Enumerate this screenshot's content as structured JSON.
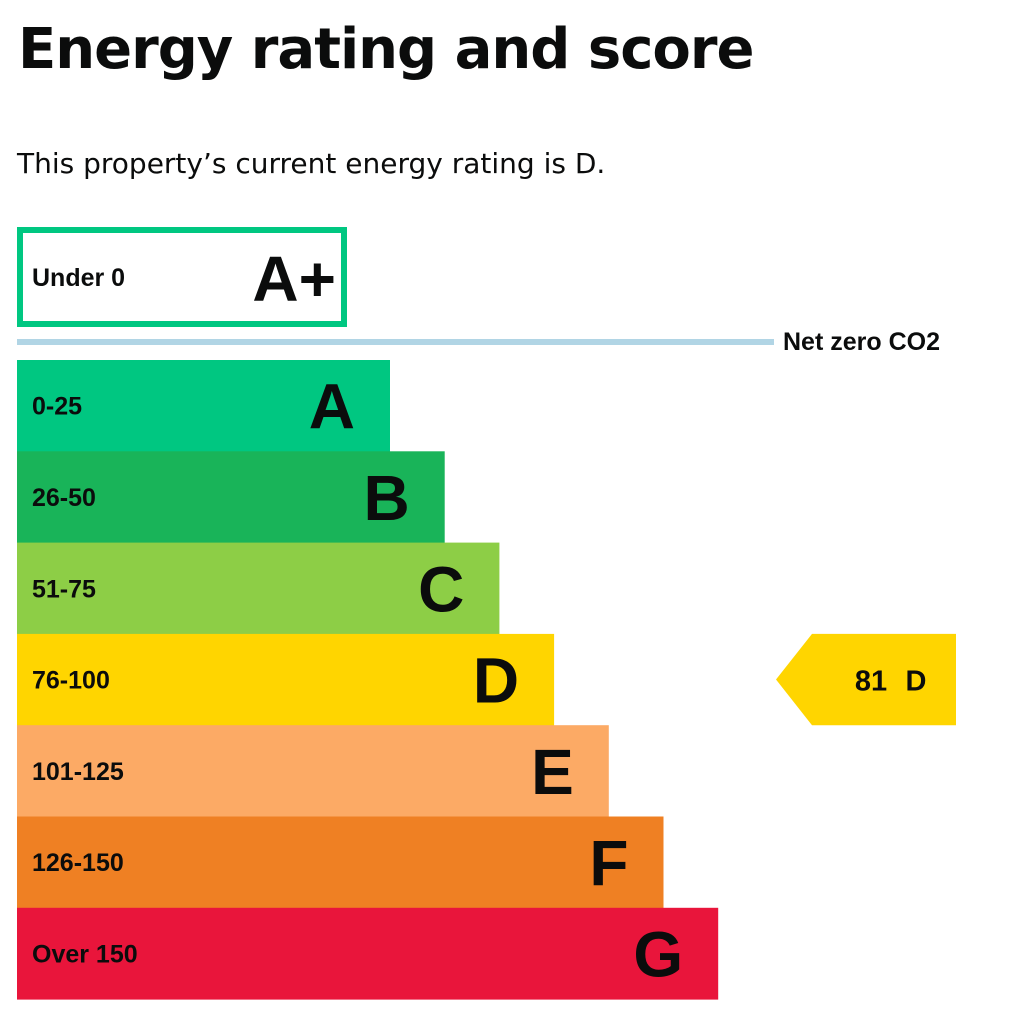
{
  "page": {
    "title": "Energy rating and score",
    "intro": "This property’s current energy rating is D."
  },
  "chart_data": {
    "type": "bar",
    "categories": [
      "A+",
      "A",
      "B",
      "C",
      "D",
      "E",
      "F",
      "G"
    ],
    "series": [
      {
        "ranges": [
          "Under 0",
          "0-25",
          "26-50",
          "51-75",
          "76-100",
          "101-125",
          "126-150",
          "Over 150"
        ]
      }
    ],
    "bands": [
      {
        "letter": "A+",
        "range": "Under 0",
        "min": -25,
        "max": 0,
        "color": "#00c781",
        "outlined": true
      },
      {
        "letter": "A",
        "range": "0-25",
        "min": 0,
        "max": 25,
        "color": "#00c781"
      },
      {
        "letter": "B",
        "range": "26-50",
        "min": 26,
        "max": 50,
        "color": "#19b459"
      },
      {
        "letter": "C",
        "range": "51-75",
        "min": 51,
        "max": 75,
        "color": "#8dce46"
      },
      {
        "letter": "D",
        "range": "76-100",
        "min": 76,
        "max": 100,
        "color": "#ffd500"
      },
      {
        "letter": "E",
        "range": "101-125",
        "min": 101,
        "max": 125,
        "color": "#fcaa65"
      },
      {
        "letter": "F",
        "range": "126-150",
        "min": 126,
        "max": 150,
        "color": "#ef8023"
      },
      {
        "letter": "G",
        "range": "Over 150",
        "min": 151,
        "max": null,
        "color": "#e9153b"
      }
    ],
    "net_zero": {
      "label": "Net zero CO2",
      "value": 0,
      "color": "#b1d5e5"
    },
    "current": {
      "score": 81,
      "rating": "D",
      "color": "#ffd500"
    },
    "title": "",
    "xlabel": "",
    "ylabel": ""
  }
}
